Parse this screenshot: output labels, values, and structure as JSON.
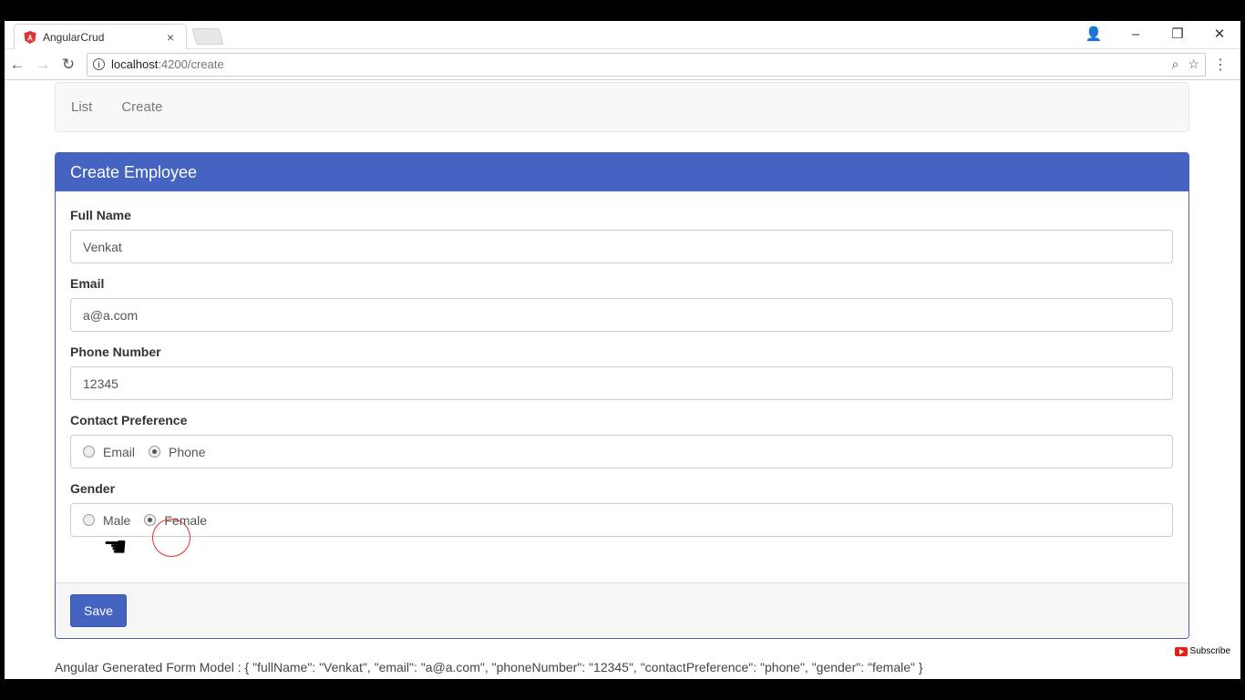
{
  "browser": {
    "tab_title": "AngularCrud",
    "tab_close": "×",
    "url_host": "localhost",
    "url_path": ":4200/create",
    "win_controls": {
      "account": "👤",
      "minimize": "–",
      "restore": "❐",
      "close": "✕"
    },
    "nav": {
      "back": "←",
      "forward": "→",
      "reload": "↻"
    },
    "omni_icons": {
      "zoom": "⌕",
      "star": "☆"
    },
    "menu": "⋮"
  },
  "topnav": {
    "items": [
      {
        "label": "List"
      },
      {
        "label": "Create"
      }
    ]
  },
  "panel": {
    "heading": "Create Employee",
    "fields": {
      "fullName": {
        "label": "Full Name",
        "value": "Venkat"
      },
      "email": {
        "label": "Email",
        "value": "a@a.com"
      },
      "phone": {
        "label": "Phone Number",
        "value": "12345"
      }
    },
    "contactPreference": {
      "label": "Contact Preference",
      "options": [
        {
          "label": "Email",
          "checked": false
        },
        {
          "label": "Phone",
          "checked": true
        }
      ]
    },
    "gender": {
      "label": "Gender",
      "options": [
        {
          "label": "Male",
          "checked": false
        },
        {
          "label": "Female",
          "checked": true
        }
      ]
    },
    "save_label": "Save"
  },
  "form_model_text": "Angular Generated Form Model : { \"fullName\": \"Venkat\", \"email\": \"a@a.com\", \"phoneNumber\": \"12345\", \"contactPreference\": \"phone\", \"gender\": \"female\" }",
  "overlay": {
    "cursor": "☚",
    "subscribe": "Subscribe"
  },
  "colors": {
    "primary": "#4563c0",
    "click_ring": "#e03030"
  }
}
